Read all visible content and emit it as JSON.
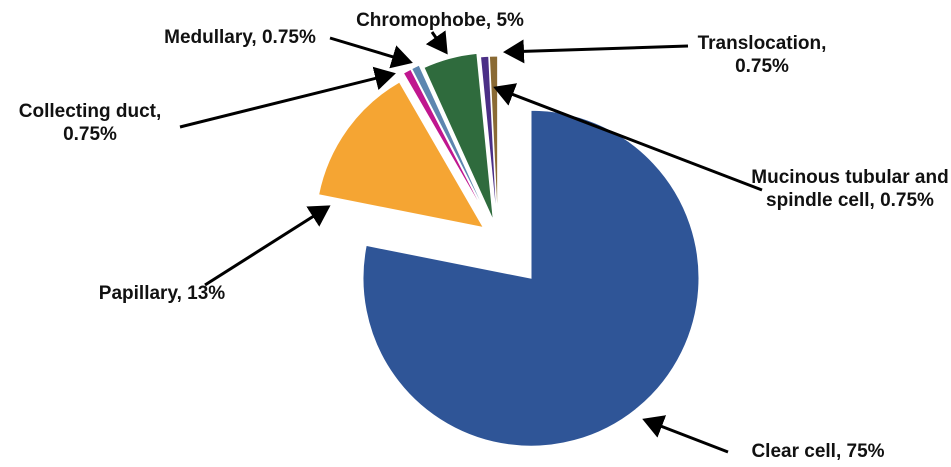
{
  "chart_data": {
    "type": "pie",
    "values": [
      75,
      13,
      0.75,
      0.75,
      5,
      0.75,
      0.75
    ],
    "value_labels": [
      "Clear cell, 75%",
      "Papillary, 13%",
      "Collecting duct, 0.75%",
      "Medullary, 0.75%",
      "Chromophobe, 5%",
      "Mucinous tubular and spindle cell, 0.75%",
      "Translocation, 0.75%"
    ],
    "colors": [
      "#2f5597",
      "#f5a533",
      "#c0168f",
      "#5d86b0",
      "#2f6b3d",
      "#4b2f86",
      "#8a6a34"
    ]
  }
}
